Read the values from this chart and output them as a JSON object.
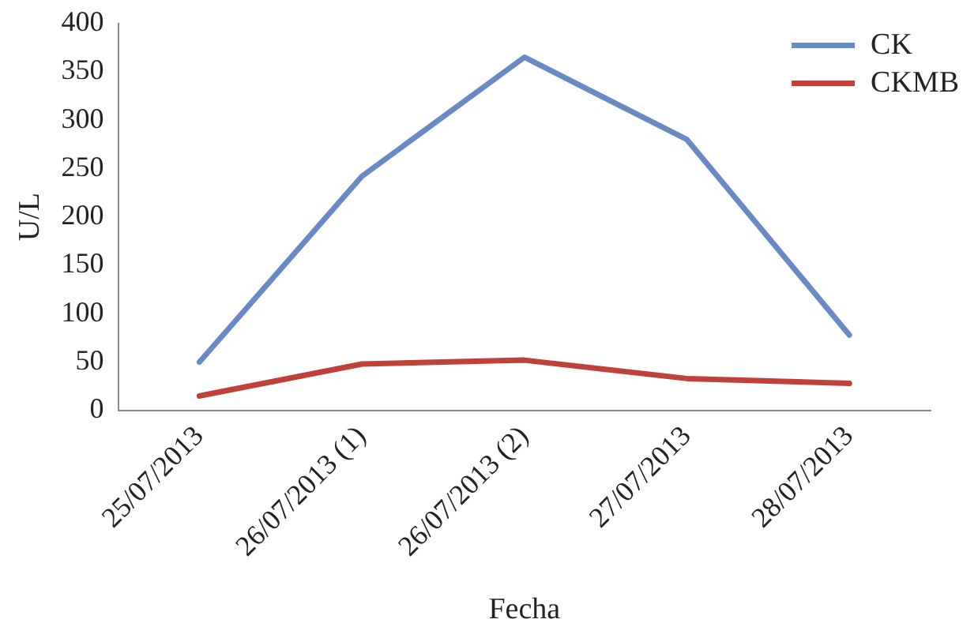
{
  "chart_data": {
    "type": "line",
    "xlabel": "Fecha",
    "ylabel": "U/L",
    "categories": [
      "25/07/2013",
      "26/07/2013 (1)",
      "26/07/2013 (2)",
      "27/07/2013",
      "28/07/2013"
    ],
    "series": [
      {
        "name": "CK",
        "color": "#6a8ac6",
        "values": [
          50,
          242,
          365,
          280,
          78
        ]
      },
      {
        "name": "CKMB",
        "color": "#c0403a",
        "values": [
          15,
          48,
          52,
          33,
          28
        ]
      }
    ],
    "ylim": [
      0,
      400
    ],
    "yticks": [
      0,
      50,
      100,
      150,
      200,
      250,
      300,
      350,
      400
    ],
    "grid": false,
    "legend": "top right",
    "marker": "none",
    "line_style": "solid"
  }
}
